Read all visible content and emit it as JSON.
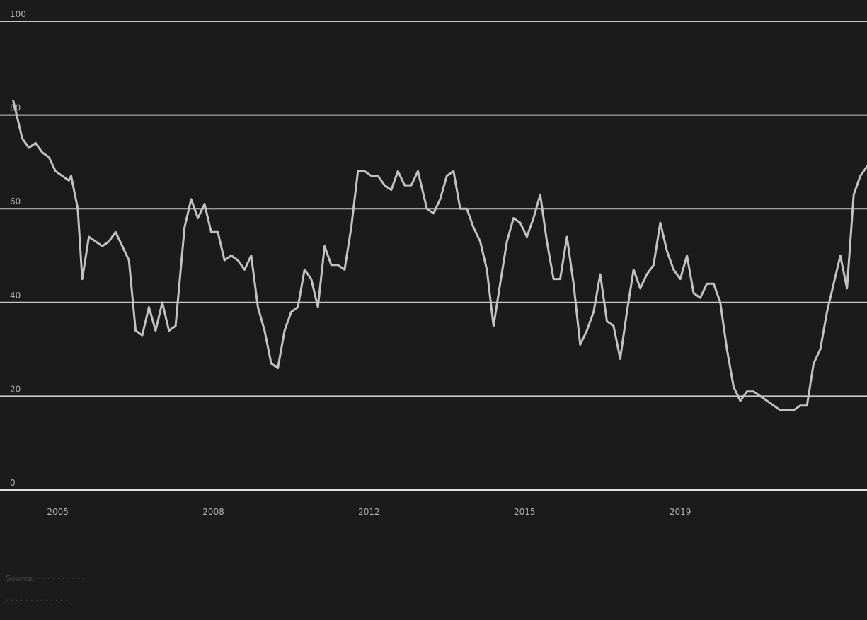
{
  "chart_data": {
    "type": "line",
    "title": "",
    "xlabel": "",
    "ylabel": "",
    "ylim": [
      0,
      100
    ],
    "xlim": [
      2003.7,
      2023.2
    ],
    "y_ticks": [
      0,
      20,
      40,
      60,
      80,
      100
    ],
    "y_tick_labels": [
      "0",
      "20",
      "40",
      "60",
      "80",
      "100"
    ],
    "x_ticks": [
      2005,
      2008.5,
      2012,
      2015.5,
      2019
    ],
    "x_tick_labels": [
      "2005",
      "2008",
      "2012",
      "2015",
      "2019"
    ],
    "grid": true,
    "legend": "none",
    "series": [
      {
        "color": "#c2c2c2",
        "points": [
          [
            2004.0,
            83
          ],
          [
            2004.2,
            75
          ],
          [
            2004.35,
            73
          ],
          [
            2004.5,
            74
          ],
          [
            2004.65,
            72
          ],
          [
            2004.8,
            71
          ],
          [
            2004.95,
            68
          ],
          [
            2005.1,
            67
          ],
          [
            2005.25,
            66
          ],
          [
            2005.3,
            67
          ],
          [
            2005.45,
            60
          ],
          [
            2005.55,
            45
          ],
          [
            2005.7,
            54
          ],
          [
            2005.85,
            53
          ],
          [
            2006.0,
            52
          ],
          [
            2006.15,
            53
          ],
          [
            2006.3,
            55
          ],
          [
            2006.45,
            52
          ],
          [
            2006.6,
            49
          ],
          [
            2006.75,
            34
          ],
          [
            2006.9,
            33
          ],
          [
            2007.05,
            39
          ],
          [
            2007.2,
            34
          ],
          [
            2007.35,
            40
          ],
          [
            2007.5,
            34
          ],
          [
            2007.65,
            35
          ],
          [
            2007.85,
            56
          ],
          [
            2008.0,
            62
          ],
          [
            2008.15,
            58
          ],
          [
            2008.3,
            61
          ],
          [
            2008.45,
            55
          ],
          [
            2008.6,
            55
          ],
          [
            2008.75,
            49
          ],
          [
            2008.9,
            50
          ],
          [
            2009.05,
            49
          ],
          [
            2009.2,
            47
          ],
          [
            2009.35,
            50
          ],
          [
            2009.5,
            39
          ],
          [
            2009.65,
            34
          ],
          [
            2009.8,
            27
          ],
          [
            2009.95,
            26
          ],
          [
            2010.1,
            34
          ],
          [
            2010.25,
            38
          ],
          [
            2010.4,
            39
          ],
          [
            2010.55,
            47
          ],
          [
            2010.7,
            45
          ],
          [
            2010.85,
            39
          ],
          [
            2011.0,
            52
          ],
          [
            2011.15,
            48
          ],
          [
            2011.3,
            48
          ],
          [
            2011.45,
            47
          ],
          [
            2011.6,
            56
          ],
          [
            2011.75,
            68
          ],
          [
            2011.9,
            68
          ],
          [
            2012.05,
            67
          ],
          [
            2012.2,
            67
          ],
          [
            2012.35,
            65
          ],
          [
            2012.5,
            64
          ],
          [
            2012.65,
            68
          ],
          [
            2012.8,
            65
          ],
          [
            2012.95,
            65
          ],
          [
            2013.1,
            68
          ],
          [
            2013.3,
            60
          ],
          [
            2013.45,
            59
          ],
          [
            2013.6,
            62
          ],
          [
            2013.75,
            67
          ],
          [
            2013.9,
            68
          ],
          [
            2014.05,
            60
          ],
          [
            2014.2,
            60
          ],
          [
            2014.35,
            56
          ],
          [
            2014.5,
            53
          ],
          [
            2014.65,
            47
          ],
          [
            2014.8,
            35
          ],
          [
            2014.95,
            44
          ],
          [
            2015.1,
            53
          ],
          [
            2015.25,
            58
          ],
          [
            2015.4,
            57
          ],
          [
            2015.55,
            54
          ],
          [
            2015.7,
            58
          ],
          [
            2015.85,
            63
          ],
          [
            2016.0,
            53
          ],
          [
            2016.15,
            45
          ],
          [
            2016.3,
            45
          ],
          [
            2016.45,
            54
          ],
          [
            2016.6,
            44
          ],
          [
            2016.75,
            31
          ],
          [
            2016.9,
            34
          ],
          [
            2017.05,
            38
          ],
          [
            2017.2,
            46
          ],
          [
            2017.35,
            36
          ],
          [
            2017.5,
            35
          ],
          [
            2017.65,
            28
          ],
          [
            2017.8,
            38
          ],
          [
            2017.95,
            47
          ],
          [
            2018.1,
            43
          ],
          [
            2018.25,
            46
          ],
          [
            2018.4,
            48
          ],
          [
            2018.55,
            57
          ],
          [
            2018.7,
            51
          ],
          [
            2018.85,
            47
          ],
          [
            2019.0,
            45
          ],
          [
            2019.15,
            50
          ],
          [
            2019.3,
            42
          ],
          [
            2019.45,
            41
          ],
          [
            2019.6,
            44
          ],
          [
            2019.75,
            44
          ],
          [
            2019.9,
            40
          ],
          [
            2020.05,
            30
          ],
          [
            2020.2,
            22
          ],
          [
            2020.35,
            19
          ],
          [
            2020.5,
            21
          ],
          [
            2020.65,
            21
          ],
          [
            2020.8,
            20
          ],
          [
            2020.95,
            19
          ],
          [
            2021.1,
            18
          ],
          [
            2021.25,
            17
          ],
          [
            2021.4,
            17
          ],
          [
            2021.55,
            17
          ],
          [
            2021.7,
            18
          ],
          [
            2021.85,
            18
          ],
          [
            2022.0,
            27
          ],
          [
            2022.15,
            30
          ],
          [
            2022.3,
            38
          ],
          [
            2022.45,
            44
          ],
          [
            2022.6,
            50
          ],
          [
            2022.75,
            43
          ],
          [
            2022.9,
            63
          ],
          [
            2023.05,
            67
          ],
          [
            2023.2,
            69
          ]
        ]
      }
    ]
  },
  "footer": {
    "line1": "Source: · · · · · · · · · · · · ·",
    "line2": "· · · · · · · · · · · · ·"
  }
}
